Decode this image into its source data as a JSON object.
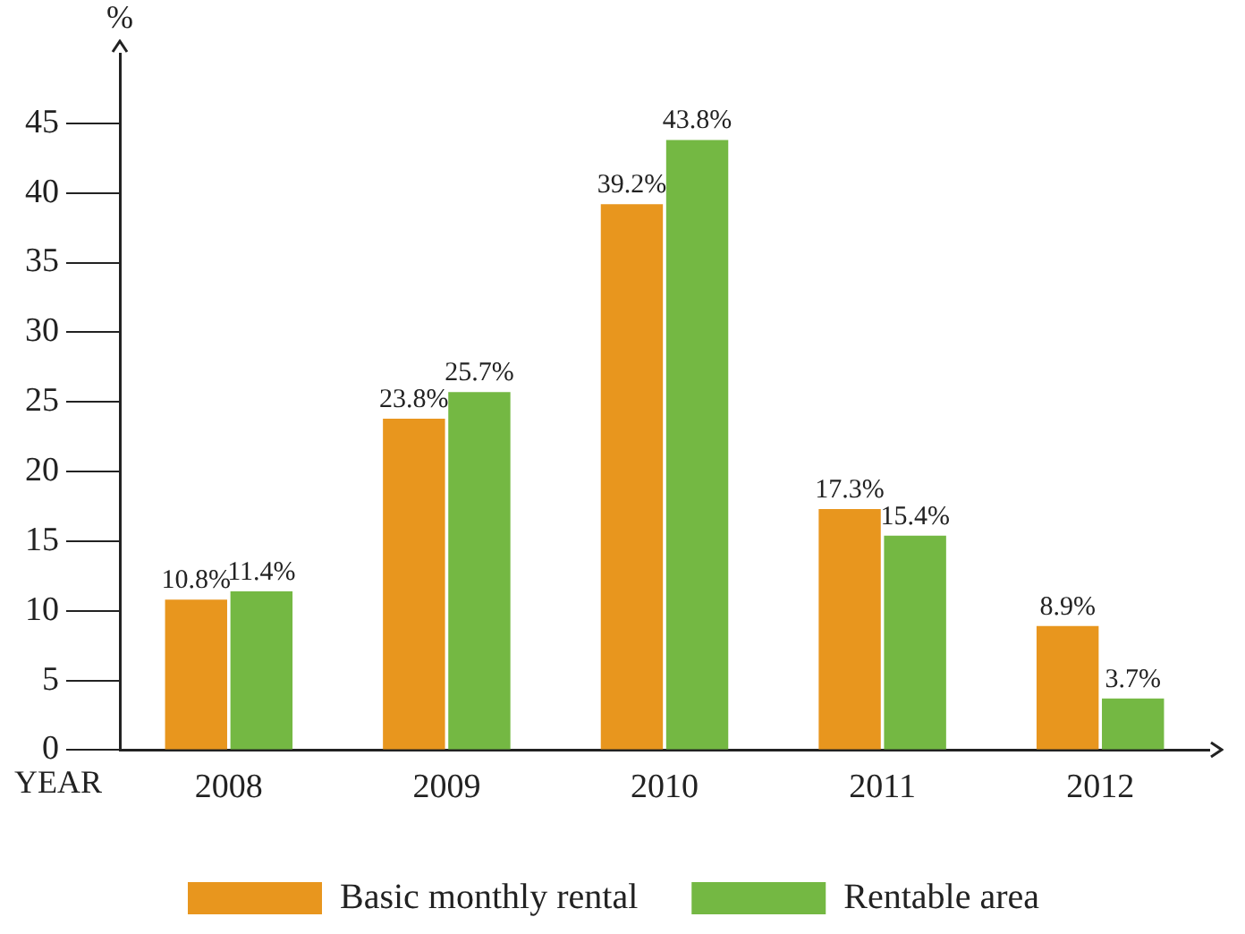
{
  "chart_data": {
    "type": "bar",
    "xlabel": "YEAR",
    "ylabel": "%",
    "categories": [
      "2008",
      "2009",
      "2010",
      "2011",
      "2012"
    ],
    "series": [
      {
        "name": "Basic monthly rental",
        "color": "#e8961e",
        "values": [
          10.8,
          23.8,
          39.2,
          17.3,
          8.9
        ],
        "value_labels": [
          "10.8%",
          "23.8%",
          "39.2%",
          "17.3%",
          "8.9%"
        ]
      },
      {
        "name": "Rentable area",
        "color": "#74b843",
        "values": [
          11.4,
          25.7,
          43.8,
          15.4,
          3.7
        ],
        "value_labels": [
          "11.4%",
          "25.7%",
          "43.8%",
          "15.4%",
          "3.7%"
        ]
      }
    ],
    "ylim": [
      0,
      50
    ],
    "yticks": [
      0,
      5,
      10,
      15,
      20,
      25,
      30,
      35,
      40,
      45
    ],
    "grid": false,
    "legend": "bottom"
  }
}
